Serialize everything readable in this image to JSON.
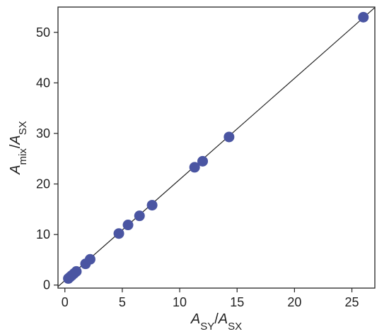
{
  "chart_data": {
    "type": "scatter",
    "title": "",
    "xlabel": {
      "main": "A",
      "sub": "SY",
      "slash": "/",
      "main2": "A",
      "sub2": "SX"
    },
    "ylabel": {
      "main": "A",
      "sub": "mix",
      "slash": "/",
      "main2": "A",
      "sub2": "SX"
    },
    "xlim": [
      -0.6,
      27
    ],
    "ylim": [
      -0.6,
      55
    ],
    "xticks": [
      0,
      5,
      10,
      15,
      20,
      25
    ],
    "yticks": [
      0,
      10,
      20,
      30,
      40,
      50
    ],
    "grid": false,
    "legend": "none",
    "point_color": "#4a55a2",
    "line_color": "#222222",
    "series": [
      {
        "values": [
          {
            "x": 0.3,
            "y": 1.3
          },
          {
            "x": 0.45,
            "y": 1.6
          },
          {
            "x": 0.6,
            "y": 1.9
          },
          {
            "x": 0.8,
            "y": 2.3
          },
          {
            "x": 1.0,
            "y": 2.7
          },
          {
            "x": 1.8,
            "y": 4.2
          },
          {
            "x": 2.2,
            "y": 5.1
          },
          {
            "x": 4.7,
            "y": 10.2
          },
          {
            "x": 5.5,
            "y": 11.9
          },
          {
            "x": 6.5,
            "y": 13.7
          },
          {
            "x": 7.6,
            "y": 15.8
          },
          {
            "x": 11.3,
            "y": 23.3
          },
          {
            "x": 12.0,
            "y": 24.5
          },
          {
            "x": 14.3,
            "y": 29.3
          },
          {
            "x": 26.0,
            "y": 53.0
          }
        ]
      }
    ],
    "fit_line": {
      "slope": 2.0,
      "intercept": 0.9
    }
  }
}
